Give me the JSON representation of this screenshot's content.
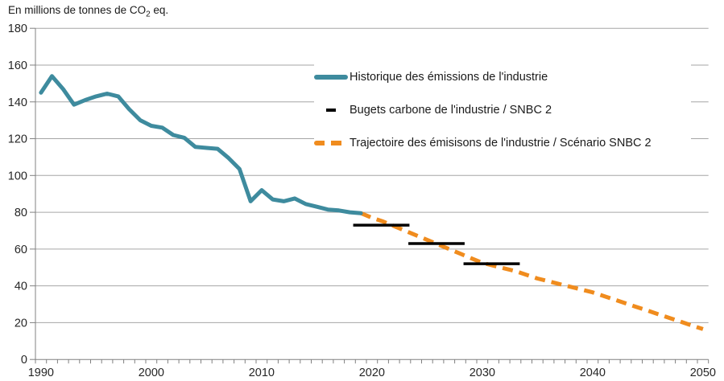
{
  "title": {
    "prefix": "En millions de tonnes de CO",
    "subscript": "2",
    "suffix": " eq."
  },
  "colors": {
    "historic_line": "#3E8B9E",
    "budget_line": "#000000",
    "trajectory_line": "#F08C1E",
    "gridline": "#A6A6A6",
    "axis": "#808080",
    "tick_text": "#262626",
    "background": "#FFFFFF"
  },
  "legend": {
    "items": [
      {
        "label": "Historique des émissions de l'industrie",
        "marker": "thick-solid-line",
        "color": "#3E8B9E"
      },
      {
        "label": "Bugets carbone de l'industrie / SNBC 2",
        "marker": "short-black-dash",
        "color": "#000000"
      },
      {
        "label": "Trajectoire des émisisons de l'industrie / Scénario SNBC 2",
        "marker": "thick-dashed-line",
        "color": "#F08C1E"
      }
    ]
  },
  "chart_data": {
    "type": "line",
    "title": "En millions de tonnes de CO2 eq.",
    "grid": "horizontal",
    "legend_position": "inside-top-right",
    "x_axis": {
      "min": 1990,
      "max": 2050,
      "major_tick_interval": 10,
      "minor_tick_interval": 1,
      "tick_labels": [
        "1990",
        "2000",
        "2010",
        "2020",
        "2030",
        "2040",
        "2050"
      ]
    },
    "y_axis": {
      "min": 0,
      "max": 180,
      "tick_interval": 20,
      "tick_labels": [
        "0",
        "20",
        "40",
        "60",
        "80",
        "100",
        "120",
        "140",
        "160",
        "180"
      ]
    },
    "series": [
      {
        "name": "Historique des émissions de l'industrie",
        "style": "solid",
        "color": "#3E8B9E",
        "points": [
          [
            1990,
            145
          ],
          [
            1991,
            154
          ],
          [
            1992,
            147
          ],
          [
            1993,
            138.5
          ],
          [
            1994,
            141
          ],
          [
            1995,
            143
          ],
          [
            1996,
            144.5
          ],
          [
            1997,
            143
          ],
          [
            1998,
            136
          ],
          [
            1999,
            130
          ],
          [
            2000,
            127
          ],
          [
            2001,
            126
          ],
          [
            2002,
            122
          ],
          [
            2003,
            120.5
          ],
          [
            2004,
            115.5
          ],
          [
            2005,
            115
          ],
          [
            2006,
            114.5
          ],
          [
            2007,
            109.5
          ],
          [
            2008,
            103.5
          ],
          [
            2009,
            86
          ],
          [
            2010,
            92
          ],
          [
            2011,
            87
          ],
          [
            2012,
            86
          ],
          [
            2013,
            87.5
          ],
          [
            2014,
            84.5
          ],
          [
            2015,
            83
          ],
          [
            2016,
            81.5
          ],
          [
            2017,
            81
          ],
          [
            2018,
            80
          ],
          [
            2019,
            79.5
          ]
        ]
      },
      {
        "name": "Bugets carbone de l'industrie / SNBC 2",
        "style": "horizontal-segments",
        "color": "#000000",
        "segments": [
          {
            "year_start": 2018.3,
            "year_end": 2023.4,
            "value": 73
          },
          {
            "year_start": 2023.3,
            "year_end": 2028.4,
            "value": 63
          },
          {
            "year_start": 2028.3,
            "year_end": 2033.4,
            "value": 52
          }
        ]
      },
      {
        "name": "Trajectoire des émisisons de l'industrie / Scénario SNBC 2",
        "style": "dashed",
        "color": "#F08C1E",
        "points": [
          [
            2019,
            79.5
          ],
          [
            2020,
            77
          ],
          [
            2021,
            75
          ],
          [
            2022,
            72.5
          ],
          [
            2023,
            70
          ],
          [
            2024,
            67.5
          ],
          [
            2025,
            65
          ],
          [
            2026,
            62.5
          ],
          [
            2027,
            60
          ],
          [
            2028,
            57.5
          ],
          [
            2029,
            55
          ],
          [
            2030,
            52.5
          ],
          [
            2031,
            51
          ],
          [
            2032,
            49.5
          ],
          [
            2033,
            48
          ],
          [
            2034,
            46
          ],
          [
            2035,
            44
          ],
          [
            2036,
            42.5
          ],
          [
            2037,
            41
          ],
          [
            2038,
            39.5
          ],
          [
            2039,
            38
          ],
          [
            2040,
            36.5
          ],
          [
            2041,
            34.5
          ],
          [
            2042,
            32.5
          ],
          [
            2043,
            30.5
          ],
          [
            2044,
            28.5
          ],
          [
            2045,
            26.5
          ],
          [
            2046,
            24.5
          ],
          [
            2047,
            22.5
          ],
          [
            2048,
            20.5
          ],
          [
            2049,
            18.5
          ],
          [
            2050,
            16.5
          ]
        ]
      }
    ]
  }
}
